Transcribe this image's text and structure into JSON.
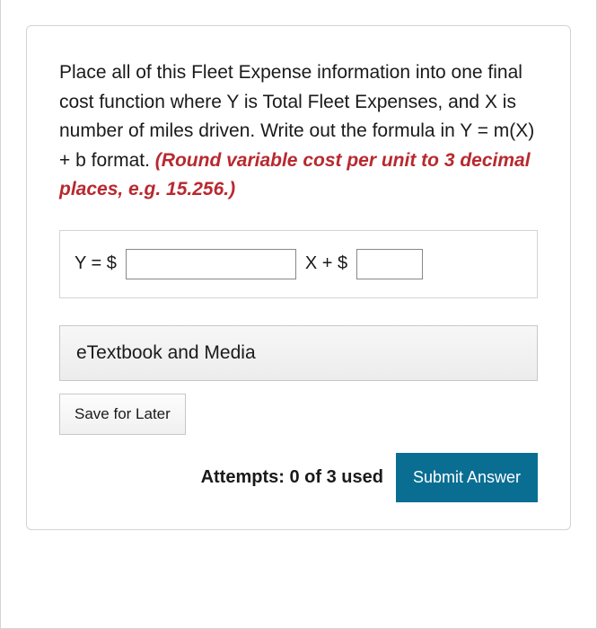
{
  "question": {
    "body_plain": "Place all of this Fleet Expense information into one final cost function where Y is Total Fleet Expenses, and X is number of miles driven. Write out the formula in Y = m(X) + b format. ",
    "hint": "(Round variable cost per unit to 3 decimal places, e.g. 15.256.)"
  },
  "formula": {
    "prefix": "Y = $",
    "middle": "X + $",
    "slope_value": "",
    "intercept_value": ""
  },
  "buttons": {
    "etextbook": "eTextbook and Media",
    "save": "Save for Later",
    "submit": "Submit Answer"
  },
  "attempts": {
    "text": "Attempts: 0 of 3 used"
  },
  "colors": {
    "hint_color": "#b8292f",
    "submit_bg": "#0a6e93",
    "submit_fg": "#ffffff",
    "border": "#d4d4d4",
    "text": "#1a1a1a"
  }
}
